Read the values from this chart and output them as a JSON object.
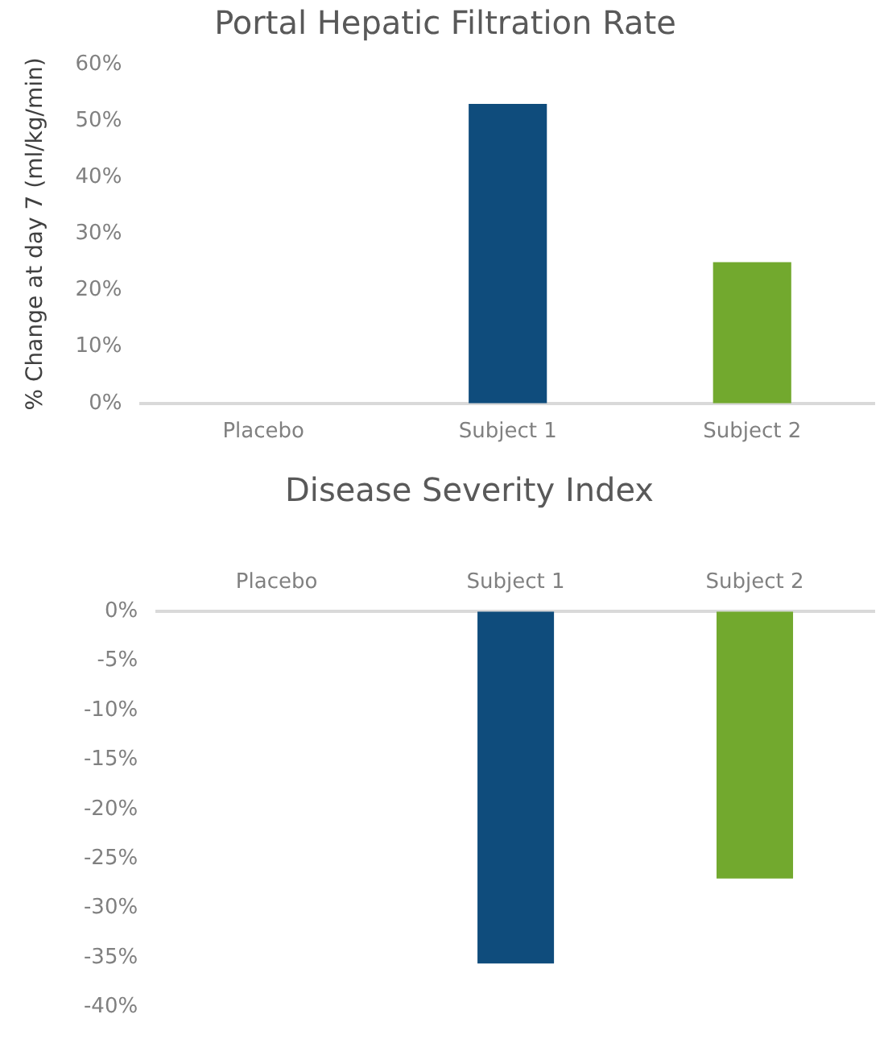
{
  "chart_data": [
    {
      "type": "bar",
      "title": "Portal Hepatic Filtration Rate",
      "ylabel": "% Change at day 7 (ml/kg/min)",
      "categories": [
        "Placebo",
        "Subject 1",
        "Subject 2"
      ],
      "values": [
        0,
        53,
        25
      ],
      "colors": [
        "#0f4c7c",
        "#0f4c7c",
        "#72a92e"
      ],
      "ylim": [
        0,
        60
      ],
      "yticks": [
        {
          "value": 0,
          "label": "0%"
        },
        {
          "value": 10,
          "label": "10%"
        },
        {
          "value": 20,
          "label": "20%"
        },
        {
          "value": 30,
          "label": "30%"
        },
        {
          "value": 40,
          "label": "40%"
        },
        {
          "value": 50,
          "label": "50%"
        },
        {
          "value": 60,
          "label": "60%"
        }
      ],
      "grid": false,
      "legend": false
    },
    {
      "type": "bar",
      "title": "Disease Severity Index",
      "categories": [
        "Placebo",
        "Subject 1",
        "Subject 2"
      ],
      "values": [
        0,
        -35.6,
        -27
      ],
      "colors": [
        "#0f4c7c",
        "#0f4c7c",
        "#72a92e"
      ],
      "ylim": [
        -40,
        0
      ],
      "yticks": [
        {
          "value": 0,
          "label": "0%"
        },
        {
          "value": -5,
          "label": "-5%"
        },
        {
          "value": -10,
          "label": "-10%"
        },
        {
          "value": -15,
          "label": "-15%"
        },
        {
          "value": -20,
          "label": "-20%"
        },
        {
          "value": -25,
          "label": "-25%"
        },
        {
          "value": -30,
          "label": "-30%"
        },
        {
          "value": -35,
          "label": "-35%"
        },
        {
          "value": -40,
          "label": "-40%"
        }
      ],
      "grid": false,
      "legend": false
    }
  ]
}
